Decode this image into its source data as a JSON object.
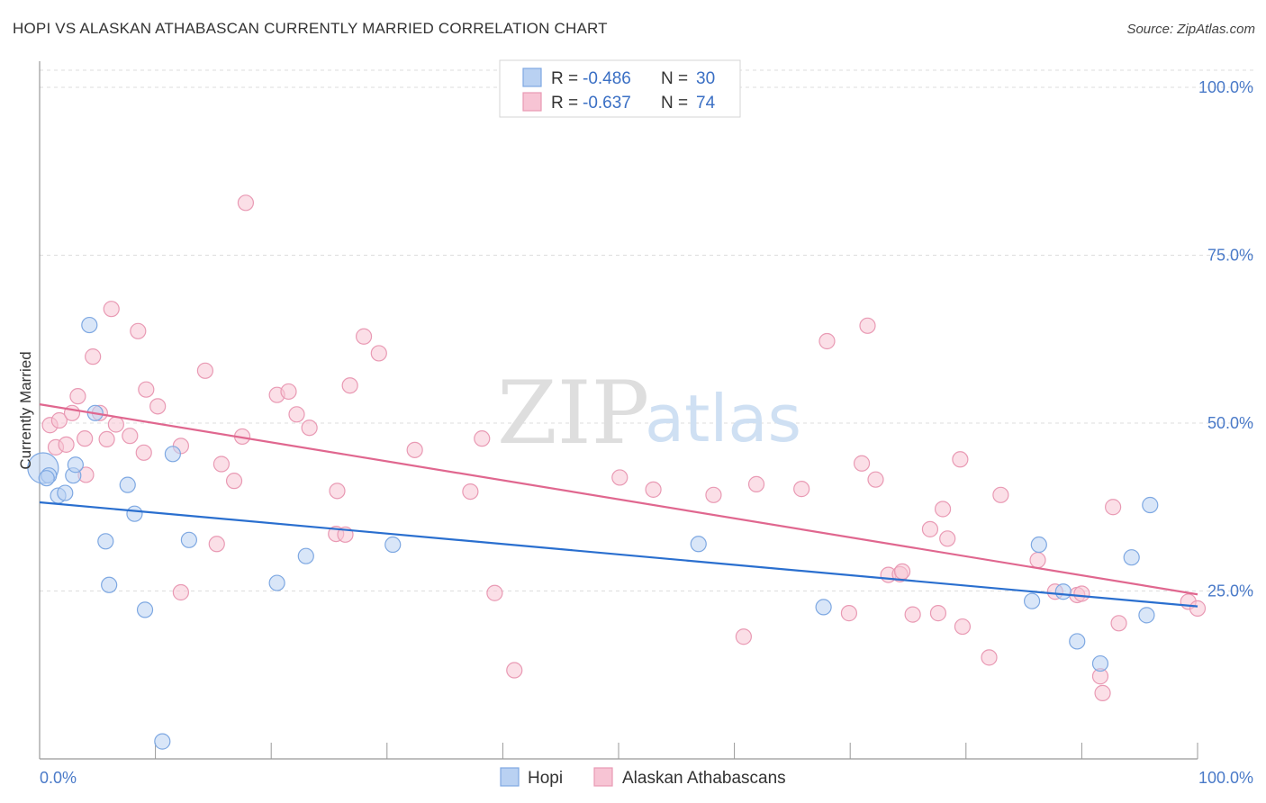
{
  "title": "HOPI VS ALASKAN ATHABASCAN CURRENTLY MARRIED CORRELATION CHART",
  "source": "Source: ZipAtlas.com",
  "watermark": {
    "zip": "ZIP",
    "atlas": "atlas"
  },
  "legend_top": [
    {
      "r_label": "R =",
      "r_value": "-0.486",
      "n_label": "N =",
      "n_value": "30",
      "color": "#6fa0e0"
    },
    {
      "r_label": "R =",
      "r_value": "-0.637",
      "n_label": "N =",
      "n_value": "74",
      "color": "#ee8fac"
    }
  ],
  "colors": {
    "hopi_fill": "#b9d1f2",
    "hopi_stroke": "#7ea8e2",
    "hopi_line": "#2a6fcf",
    "alaskan_fill": "#f7c4d4",
    "alaskan_stroke": "#e99ab4",
    "alaskan_line": "#e0678f",
    "grid": "#dddddd",
    "axis": "#999999"
  },
  "chart_data": {
    "type": "scatter",
    "title": "HOPI VS ALASKAN ATHABASCAN CURRENTLY MARRIED CORRELATION CHART",
    "xlabel": "",
    "ylabel": "Currently Married",
    "xlim": [
      0,
      100
    ],
    "ylim": [
      0,
      100
    ],
    "x_tick_labels": [
      "0.0%",
      "100.0%"
    ],
    "y_ticks": [
      25,
      50,
      75,
      100
    ],
    "y_tick_labels": [
      "25.0%",
      "50.0%",
      "75.0%",
      "100.0%"
    ],
    "series": [
      {
        "name": "Hopi",
        "r": -0.486,
        "n": 30,
        "trend": {
          "x0": 0,
          "y0": 38.2,
          "x1": 100,
          "y1": 22.7
        },
        "points": [
          [
            0.3,
            43.3
          ],
          [
            0.8,
            42.2
          ],
          [
            1.6,
            39.2
          ],
          [
            2.2,
            39.6
          ],
          [
            2.9,
            42.2
          ],
          [
            3.1,
            43.8
          ],
          [
            4.3,
            64.6
          ],
          [
            4.8,
            51.5
          ],
          [
            5.7,
            32.4
          ],
          [
            6.0,
            25.9
          ],
          [
            7.6,
            40.8
          ],
          [
            8.2,
            36.5
          ],
          [
            9.1,
            22.2
          ],
          [
            10.6,
            2.6
          ],
          [
            11.5,
            45.4
          ],
          [
            12.9,
            32.6
          ],
          [
            20.5,
            26.2
          ],
          [
            23.0,
            30.2
          ],
          [
            30.5,
            31.9
          ],
          [
            56.9,
            32.0
          ],
          [
            67.7,
            22.6
          ],
          [
            85.7,
            23.5
          ],
          [
            86.3,
            31.9
          ],
          [
            88.4,
            24.9
          ],
          [
            89.6,
            17.5
          ],
          [
            91.6,
            14.2
          ],
          [
            94.3,
            30.0
          ],
          [
            95.6,
            21.4
          ],
          [
            95.9,
            37.8
          ],
          [
            0.6,
            41.8
          ]
        ]
      },
      {
        "name": "Alaskan Athabascans",
        "r": -0.637,
        "n": 74,
        "trend": {
          "x0": 0,
          "y0": 52.8,
          "x1": 100,
          "y1": 24.5
        },
        "points": [
          [
            0.9,
            49.7
          ],
          [
            1.4,
            46.4
          ],
          [
            1.7,
            50.4
          ],
          [
            2.3,
            46.8
          ],
          [
            2.8,
            51.5
          ],
          [
            3.3,
            54.0
          ],
          [
            3.9,
            47.7
          ],
          [
            4.0,
            42.3
          ],
          [
            4.6,
            59.9
          ],
          [
            5.2,
            51.5
          ],
          [
            5.8,
            47.6
          ],
          [
            6.2,
            67.0
          ],
          [
            6.6,
            49.8
          ],
          [
            7.8,
            48.1
          ],
          [
            8.5,
            63.7
          ],
          [
            9.0,
            45.6
          ],
          [
            9.2,
            55.0
          ],
          [
            10.2,
            52.5
          ],
          [
            12.2,
            46.6
          ],
          [
            12.2,
            24.8
          ],
          [
            14.3,
            57.8
          ],
          [
            15.3,
            32.0
          ],
          [
            15.7,
            43.9
          ],
          [
            16.8,
            41.4
          ],
          [
            17.5,
            48.0
          ],
          [
            17.8,
            82.8
          ],
          [
            20.5,
            54.2
          ],
          [
            21.5,
            54.7
          ],
          [
            22.2,
            51.3
          ],
          [
            23.3,
            49.3
          ],
          [
            25.6,
            33.5
          ],
          [
            25.7,
            39.9
          ],
          [
            26.4,
            33.4
          ],
          [
            26.8,
            55.6
          ],
          [
            28.0,
            62.9
          ],
          [
            29.3,
            60.4
          ],
          [
            32.4,
            46.0
          ],
          [
            37.2,
            39.8
          ],
          [
            38.2,
            47.7
          ],
          [
            39.3,
            24.7
          ],
          [
            41.0,
            13.2
          ],
          [
            50.1,
            41.9
          ],
          [
            53.0,
            40.1
          ],
          [
            58.2,
            39.3
          ],
          [
            60.8,
            18.2
          ],
          [
            61.9,
            40.9
          ],
          [
            65.8,
            40.2
          ],
          [
            68.0,
            62.2
          ],
          [
            69.9,
            21.7
          ],
          [
            71.0,
            44.0
          ],
          [
            71.5,
            64.5
          ],
          [
            72.2,
            41.6
          ],
          [
            73.3,
            27.4
          ],
          [
            74.3,
            27.5
          ],
          [
            74.5,
            27.9
          ],
          [
            75.4,
            21.5
          ],
          [
            76.9,
            34.2
          ],
          [
            77.6,
            21.7
          ],
          [
            78.0,
            37.2
          ],
          [
            78.4,
            32.8
          ],
          [
            79.5,
            44.6
          ],
          [
            79.7,
            19.7
          ],
          [
            82.0,
            15.1
          ],
          [
            83.0,
            39.3
          ],
          [
            86.2,
            29.6
          ],
          [
            87.7,
            24.9
          ],
          [
            89.6,
            24.4
          ],
          [
            91.6,
            12.3
          ],
          [
            91.8,
            9.8
          ],
          [
            92.7,
            37.5
          ],
          [
            93.2,
            20.2
          ],
          [
            99.2,
            23.4
          ],
          [
            100.0,
            22.4
          ],
          [
            90.0,
            24.6
          ]
        ]
      }
    ]
  },
  "bottom_legend": [
    {
      "label": "Hopi"
    },
    {
      "label": "Alaskan Athabascans"
    }
  ]
}
